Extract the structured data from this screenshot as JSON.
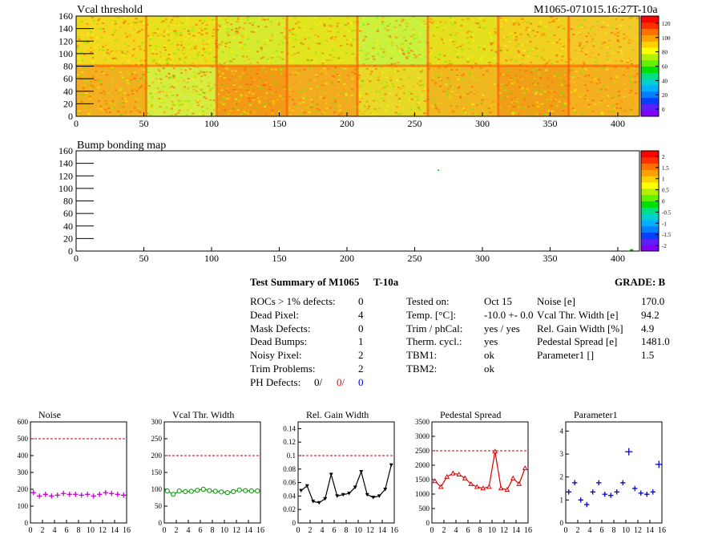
{
  "header": {
    "map_title": "Vcal threshold",
    "module_id": "M1065-071015.16:27T-10a",
    "bump_title": "Bump bonding map"
  },
  "maps": {
    "xticks": [
      "0",
      "50",
      "100",
      "150",
      "200",
      "250",
      "300",
      "350",
      "400"
    ],
    "yticks": [
      "0",
      "20",
      "40",
      "60",
      "80",
      "100",
      "120",
      "140",
      "160"
    ],
    "vcal_scale": [
      "0",
      "20",
      "40",
      "60",
      "80",
      "100",
      "120"
    ],
    "bump_scale": [
      "-2",
      "-1.5",
      "-1",
      "-0.5",
      "0",
      "0.5",
      "1",
      "1.5",
      "2"
    ]
  },
  "summary": {
    "title": "Test Summary of M1065",
    "tag": "T-10a",
    "grade": "GRADE:  B",
    "left": [
      {
        "label": "ROCs > 1% defects:",
        "value": "0"
      },
      {
        "label": "Dead Pixel:",
        "value": "4"
      },
      {
        "label": "Mask Defects:",
        "value": "0"
      },
      {
        "label": "Dead Bumps:",
        "value": "1"
      },
      {
        "label": "Noisy Pixel:",
        "value": "2"
      },
      {
        "label": "Trim Problems:",
        "value": "2"
      }
    ],
    "ph_label": "PH Defects:",
    "ph_values": [
      "0/",
      "0/",
      "0"
    ],
    "middle": [
      {
        "label": "Tested on:",
        "value": "Oct 15"
      },
      {
        "label": "Temp. [°C]:",
        "value": "-10.0 +- 0.0"
      },
      {
        "label": "Trim / phCal:",
        "value": "yes / yes"
      },
      {
        "label": "Therm. cycl.:",
        "value": "yes"
      },
      {
        "label": "TBM1:",
        "value": "ok"
      },
      {
        "label": "TBM2:",
        "value": "ok"
      }
    ],
    "right": [
      {
        "label": "Noise [e]",
        "value": "170.0"
      },
      {
        "label": "Vcal Thr. Width [e]",
        "value": "94.2"
      },
      {
        "label": "Rel. Gain Width [%]",
        "value": "4.9"
      },
      {
        "label": "Pedestal Spread [e]",
        "value": "1481.0"
      },
      {
        "label": "Parameter1 []",
        "value": "1.5"
      }
    ]
  },
  "chart_data": [
    {
      "type": "scatter",
      "title": "Noise",
      "color": "#cc00cc",
      "marker": "plus",
      "xlim": [
        0,
        16
      ],
      "ylim": [
        0,
        600
      ],
      "yticks": [
        "0",
        "100",
        "200",
        "300",
        "400",
        "500",
        "600"
      ],
      "xticks": [
        "0",
        "2",
        "4",
        "6",
        "8",
        "10",
        "12",
        "14",
        "16"
      ],
      "limit": 500,
      "limit_color": "#cc0000",
      "x": [
        0,
        1,
        2,
        3,
        4,
        5,
        6,
        7,
        8,
        9,
        10,
        11,
        12,
        13,
        14,
        15
      ],
      "values": [
        180,
        160,
        170,
        160,
        165,
        175,
        170,
        170,
        165,
        170,
        160,
        170,
        180,
        175,
        170,
        165
      ]
    },
    {
      "type": "line",
      "title": "Vcal Thr. Width",
      "color": "#009900",
      "marker": "circle",
      "xlim": [
        0,
        16
      ],
      "ylim": [
        0,
        300
      ],
      "yticks": [
        "0",
        "50",
        "100",
        "150",
        "200",
        "250",
        "300"
      ],
      "xticks": [
        "0",
        "2",
        "4",
        "6",
        "8",
        "10",
        "12",
        "14",
        "16"
      ],
      "limit": 200,
      "limit_color": "#cc0000",
      "x": [
        0,
        1,
        2,
        3,
        4,
        5,
        6,
        7,
        8,
        9,
        10,
        11,
        12,
        13,
        14,
        15
      ],
      "values": [
        95,
        85,
        95,
        93,
        94,
        97,
        100,
        96,
        94,
        92,
        90,
        93,
        98,
        96,
        95,
        95
      ]
    },
    {
      "type": "line",
      "title": "Rel. Gain Width",
      "color": "#000000",
      "marker": "triangle-down",
      "xlim": [
        0,
        16
      ],
      "ylim": [
        0,
        0.15
      ],
      "yticks": [
        "0",
        "0.02",
        "0.04",
        "0.06",
        "0.08",
        "0.1",
        "0.12",
        "0.14"
      ],
      "xticks": [
        "0",
        "2",
        "4",
        "6",
        "8",
        "10",
        "12",
        "14",
        "16"
      ],
      "limit": 0.1,
      "limit_color": "#cc0000",
      "x": [
        0,
        1,
        2,
        3,
        4,
        5,
        6,
        7,
        8,
        9,
        10,
        11,
        12,
        13,
        14,
        15
      ],
      "values": [
        0.048,
        0.055,
        0.032,
        0.03,
        0.036,
        0.072,
        0.04,
        0.042,
        0.044,
        0.053,
        0.076,
        0.042,
        0.038,
        0.04,
        0.05,
        0.086
      ]
    },
    {
      "type": "line",
      "title": "Pedestal Spread",
      "color": "#dd0000",
      "marker": "triangle-up",
      "xlim": [
        0,
        16
      ],
      "ylim": [
        0,
        3500
      ],
      "yticks": [
        "0",
        "500",
        "1000",
        "1500",
        "2000",
        "2500",
        "3000",
        "3500"
      ],
      "xticks": [
        "0",
        "2",
        "4",
        "6",
        "8",
        "10",
        "12",
        "14",
        "16"
      ],
      "limit": 2500,
      "limit_color": "#cc0000",
      "x": [
        0,
        1,
        2,
        3,
        4,
        5,
        6,
        7,
        8,
        9,
        10,
        11,
        12,
        13,
        14,
        15
      ],
      "values": [
        1450,
        1250,
        1600,
        1720,
        1680,
        1550,
        1350,
        1250,
        1200,
        1250,
        2480,
        1200,
        1150,
        1550,
        1350,
        1900
      ]
    },
    {
      "type": "scatter",
      "title": "Parameter1",
      "color": "#0000cc",
      "marker": "plus",
      "xlim": [
        0,
        16
      ],
      "ylim": [
        0,
        4.4
      ],
      "yticks": [
        "0",
        "1",
        "2",
        "3",
        "4"
      ],
      "xticks": [
        "0",
        "2",
        "4",
        "6",
        "8",
        "10",
        "12",
        "14",
        "16"
      ],
      "limit": null,
      "x": [
        0,
        1,
        2,
        3,
        4,
        5,
        6,
        7,
        8,
        9,
        10,
        11,
        12,
        13,
        14,
        15
      ],
      "values": [
        1.35,
        1.75,
        1.0,
        0.8,
        1.35,
        1.75,
        1.25,
        1.2,
        1.35,
        1.75,
        3.1,
        1.5,
        1.3,
        1.25,
        1.35,
        2.55
      ]
    }
  ]
}
